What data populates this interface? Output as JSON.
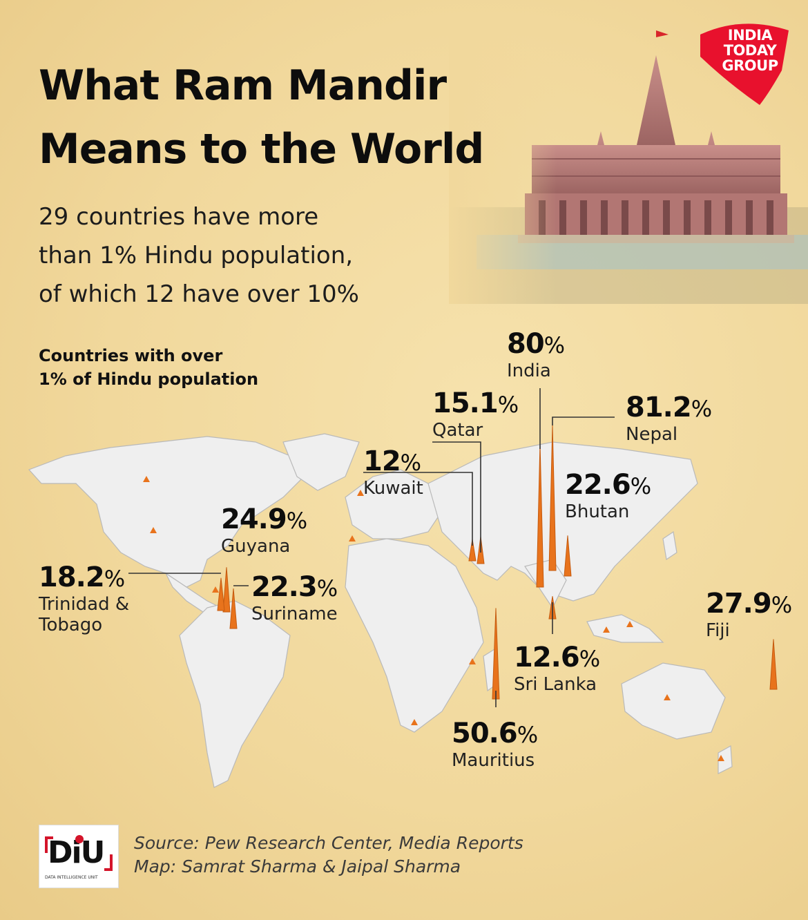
{
  "header": {
    "title_line1": "What Ram Mandir",
    "title_line2": "Means to the World",
    "subtitle_line1": "29 countries have more",
    "subtitle_line2": "than 1% Hindu population,",
    "subtitle_line3": "of which 12 have over 10%"
  },
  "logo": {
    "line1": "INDIA",
    "line2": "TODAY",
    "line3": "GROUP",
    "color": "#e8112d"
  },
  "map": {
    "label_line1": "Countries with over",
    "label_line2": "1% of Hindu population",
    "land_color": "#efefef",
    "border_color": "#b9b9b9",
    "spike_color": "#e8731c"
  },
  "callouts": [
    {
      "id": "india",
      "value": "80",
      "unit": "%",
      "country": "India"
    },
    {
      "id": "nepal",
      "value": "81.2",
      "unit": "%",
      "country": "Nepal"
    },
    {
      "id": "qatar",
      "value": "15.1",
      "unit": "%",
      "country": "Qatar"
    },
    {
      "id": "kuwait",
      "value": "12",
      "unit": "%",
      "country": "Kuwait"
    },
    {
      "id": "bhutan",
      "value": "22.6",
      "unit": "%",
      "country": "Bhutan"
    },
    {
      "id": "guyana",
      "value": "24.9",
      "unit": "%",
      "country": "Guyana"
    },
    {
      "id": "trinidad",
      "value": "18.2",
      "unit": "%",
      "country_line1": "Trinidad &",
      "country_line2": "Tobago"
    },
    {
      "id": "suriname",
      "value": "22.3",
      "unit": "%",
      "country": "Suriname"
    },
    {
      "id": "fiji",
      "value": "27.9",
      "unit": "%",
      "country": "Fiji"
    },
    {
      "id": "srilanka",
      "value": "12.6",
      "unit": "%",
      "country": "Sri Lanka"
    },
    {
      "id": "mauritius",
      "value": "50.6",
      "unit": "%",
      "country": "Mauritius"
    }
  ],
  "footer": {
    "diu_letters": "DiU",
    "diu_sub": "DATA INTELLIGENCE UNIT",
    "source": "Source: Pew Research Center, Media Reports",
    "map_credit": "Map: Samrat Sharma & Jaipal Sharma"
  }
}
